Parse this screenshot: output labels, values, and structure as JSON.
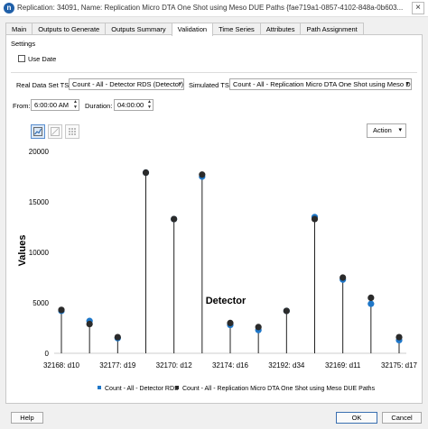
{
  "window": {
    "title": "Replication: 34091, Name: Replication Micro DTA One Shot using Meso DUE Paths  {fae719a1-0857-4102-848a-0b603...",
    "icon_letter": "n",
    "close_icon": "×"
  },
  "tabs": [
    {
      "label": "Main"
    },
    {
      "label": "Outputs to Generate"
    },
    {
      "label": "Outputs Summary"
    },
    {
      "label": "Validation",
      "active": true
    },
    {
      "label": "Time Series"
    },
    {
      "label": "Attributes"
    },
    {
      "label": "Path Assignment"
    }
  ],
  "settings": {
    "group_label": "Settings",
    "use_date_label": "Use Date",
    "use_date_checked": false
  },
  "series_select": {
    "real_label": "Real Data Set TS:",
    "real_value": "Count - All - Detector RDS (Detector)",
    "simulated_label": "Simulated TS:",
    "simulated_value": "Count - All - Replication Micro DTA One Shot using Meso DUE"
  },
  "time": {
    "from_label": "From:",
    "from_value": "6:00:00 AM",
    "duration_label": "Duration:",
    "duration_value": "04:00:00"
  },
  "toolbar": {
    "action_label": "Action",
    "icons": [
      "line-chart-icon",
      "scatter-chart-icon",
      "grid-table-icon"
    ]
  },
  "chart_data": {
    "type": "scatter",
    "xlabel": "Detector",
    "ylabel": "Values",
    "ylim": [
      0,
      20000
    ],
    "yticks": [
      0,
      5000,
      10000,
      15000,
      20000
    ],
    "categories": [
      "32168: d10",
      "",
      "32177: d19",
      "",
      "32170: d12",
      "",
      "32174: d16",
      "",
      "32192: d34",
      "",
      "32169: d11",
      "",
      "32175: d17"
    ],
    "series": [
      {
        "name": "Count - All - Detector RDS",
        "color": "#1f77c8",
        "values": [
          4200,
          3200,
          1500,
          17900,
          13300,
          17500,
          2800,
          2300,
          4200,
          13500,
          7300,
          4900,
          1300
        ]
      },
      {
        "name": "Count - All - Replication Micro DTA One Shot using Meso DUE Paths",
        "color": "#2b2b2b",
        "values": [
          4300,
          2900,
          1600,
          17900,
          13300,
          17700,
          3000,
          2600,
          4200,
          13300,
          7500,
          5500,
          1600
        ]
      }
    ]
  },
  "footer": {
    "help_label": "Help",
    "ok_label": "OK",
    "cancel_label": "Cancel"
  }
}
